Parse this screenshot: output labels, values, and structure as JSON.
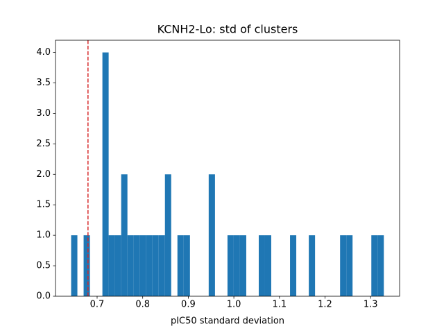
{
  "chart_data": {
    "type": "histogram",
    "title": "KCNH2-Lo: std of clusters",
    "xlabel": "pIC50 standard deviation",
    "bins": [
      0.643,
      0.6567,
      0.6704,
      0.6842,
      0.6979,
      0.7116,
      0.7253,
      0.739,
      0.7528,
      0.7665,
      0.7802,
      0.7939,
      0.8076,
      0.8214,
      0.8351,
      0.8488,
      0.8625,
      0.8762,
      0.89,
      0.9037,
      0.9174,
      0.9311,
      0.9448,
      0.9586,
      0.9723,
      0.986,
      0.9997,
      1.0134,
      1.0272,
      1.0409,
      1.0546,
      1.0683,
      1.082,
      1.0958,
      1.1095,
      1.1232,
      1.1369,
      1.1506,
      1.1644,
      1.1781,
      1.1918,
      1.2055,
      1.2192,
      1.233,
      1.2467,
      1.2604,
      1.2741,
      1.2878,
      1.3016,
      1.3153,
      1.329
    ],
    "values": [
      1,
      0,
      1,
      0,
      0,
      4,
      1,
      1,
      2,
      1,
      1,
      1,
      1,
      1,
      1,
      2,
      0,
      1,
      1,
      0,
      0,
      0,
      2,
      0,
      0,
      1,
      1,
      1,
      0,
      0,
      1,
      1,
      0,
      0,
      0,
      1,
      0,
      0,
      1,
      0,
      0,
      0,
      0,
      1,
      1,
      0,
      0,
      0,
      1,
      1
    ],
    "color": "#1f77b4",
    "vline": {
      "x": 0.68,
      "color": "#d62728"
    },
    "xlim": [
      0.6087,
      1.3636
    ],
    "xticks": [
      0.7,
      0.8,
      0.9,
      {
        "value": 1.0,
        "label": "1.0"
      },
      1.1,
      1.2,
      1.3
    ],
    "ylim": [
      0,
      4.2
    ],
    "yticks": [
      {
        "value": 0,
        "label": "0.0"
      },
      {
        "value": 0.5,
        "label": "0.5"
      },
      {
        "value": 1,
        "label": "1.0"
      },
      {
        "value": 1.5,
        "label": "1.5"
      },
      {
        "value": 2,
        "label": "2.0"
      },
      {
        "value": 2.5,
        "label": "2.5"
      },
      {
        "value": 3,
        "label": "3.0"
      },
      {
        "value": 3.5,
        "label": "3.5"
      },
      {
        "value": 4,
        "label": "4.0"
      }
    ]
  }
}
